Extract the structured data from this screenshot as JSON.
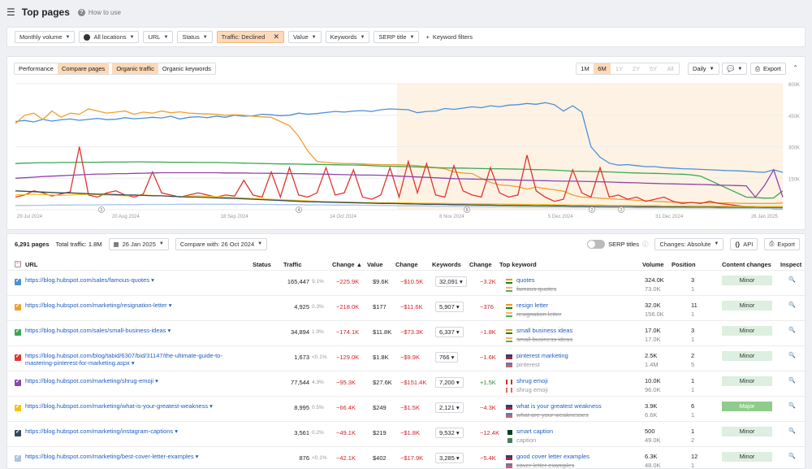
{
  "header": {
    "title": "Top pages",
    "howto": "How to use"
  },
  "filters": [
    {
      "label": "Monthly volume",
      "icon": "none"
    },
    {
      "label": "All locations",
      "icon": "globe"
    },
    {
      "label": "URL"
    },
    {
      "label": "Status"
    },
    {
      "label": "Traffic: Declined",
      "active": true
    },
    {
      "label": "Value"
    },
    {
      "label": "Keywords"
    },
    {
      "label": "SERP title"
    },
    {
      "label": "Keyword filters",
      "plus": true
    }
  ],
  "chart_tabs": [
    "Performance",
    "Compare pages",
    "Organic traffic",
    "Organic keywords"
  ],
  "ranges": [
    "1M",
    "6M",
    "1Y",
    "2Y",
    "5Y",
    "All"
  ],
  "controls": {
    "interval": "Daily",
    "export": "Export"
  },
  "chart_data": {
    "type": "line",
    "x_labels": [
      "29 Jul 2024",
      "20 Aug 2024",
      "18 Sep 2024",
      "14 Oct 2024",
      "8 Nov 2024",
      "5 Dec 2024",
      "31 Dec 2024",
      "26 Jan 2025"
    ],
    "y_ticks": [
      "600K",
      "450K",
      "300K",
      "150K",
      "0"
    ],
    "ylim": [
      0,
      600000
    ],
    "highlight_range": [
      "26 Oct 2024",
      "26 Jan 2025"
    ],
    "annotations": [
      "2",
      "4",
      "8",
      "2",
      "2"
    ],
    "series": [
      {
        "name": "famous-quotes",
        "color": "#4a90d9",
        "values": [
          420,
          425,
          418,
          430,
          422,
          428,
          432,
          426,
          430,
          435,
          429,
          431,
          438,
          433,
          436,
          440,
          437,
          445,
          432,
          440,
          443,
          438,
          446,
          440,
          450,
          445,
          447,
          455,
          452,
          448,
          450,
          460,
          455,
          458,
          463,
          468,
          465,
          470,
          472,
          468,
          476,
          480,
          478,
          476,
          462,
          468,
          470,
          482,
          478,
          484,
          490,
          486,
          495,
          490,
          498,
          500,
          506,
          502,
          510,
          500,
          470,
          495,
          465,
          300,
          250,
          222,
          212,
          215,
          210,
          205,
          205,
          200,
          198,
          195,
          194,
          192,
          190,
          188,
          186,
          185,
          183,
          180,
          178,
          190,
          178
        ]
      },
      {
        "name": "resignation-letter",
        "color": "#f0a030",
        "values": [
          410,
          450,
          460,
          430,
          470,
          440,
          460,
          455,
          480,
          470,
          460,
          465,
          470,
          455,
          465,
          460,
          470,
          462,
          466,
          460,
          458,
          456,
          455,
          450,
          452,
          450,
          445,
          442,
          440,
          420,
          400,
          350,
          280,
          230,
          225,
          222,
          220,
          220,
          218,
          216,
          215,
          214,
          214,
          212,
          210,
          205,
          200,
          195,
          180,
          175,
          172,
          150,
          130,
          118,
          115,
          110,
          98,
          108,
          100,
          95,
          88,
          70,
          60,
          58,
          55,
          52,
          50,
          48,
          45,
          43,
          40,
          38,
          36,
          35,
          34,
          33,
          33,
          32,
          32,
          31,
          30,
          30,
          30,
          30,
          32
        ]
      },
      {
        "name": "small-business-ideas",
        "color": "#3aa655",
        "values": [
          220,
          222,
          223,
          224,
          224,
          225,
          225,
          226,
          226,
          226,
          227,
          227,
          227,
          228,
          228,
          227,
          227,
          226,
          226,
          226,
          225,
          225,
          225,
          224,
          223,
          222,
          221,
          220,
          219,
          218,
          218,
          217,
          216,
          216,
          215,
          214,
          213,
          213,
          212,
          210,
          208,
          207,
          206,
          205,
          204,
          202,
          200,
          199,
          198,
          198,
          197,
          196,
          195,
          195,
          194,
          193,
          192,
          191,
          190,
          188,
          186,
          184,
          183,
          182,
          181,
          180,
          178,
          176,
          175,
          174,
          173,
          172,
          170,
          169,
          166,
          160,
          140,
          120,
          100,
          80,
          60,
          58,
          55,
          56,
          90
        ]
      },
      {
        "name": "pinterest-marketing",
        "color": "#e0342f",
        "values": [
          60,
          70,
          90,
          80,
          65,
          75,
          85,
          300,
          70,
          60,
          80,
          90,
          70,
          60,
          75,
          180,
          80,
          70,
          60,
          70,
          80,
          70,
          60,
          70,
          65,
          140,
          70,
          60,
          180,
          60,
          200,
          70,
          60,
          80,
          200,
          70,
          80,
          190,
          60,
          50,
          70,
          200,
          60,
          230,
          80,
          220,
          70,
          60,
          210,
          90,
          70,
          60,
          200,
          80,
          60,
          70,
          260,
          90,
          60,
          40,
          50,
          190,
          80,
          60,
          200,
          60,
          70,
          50,
          60,
          40,
          50,
          60,
          40,
          30,
          35,
          30,
          40,
          30,
          25,
          20,
          15,
          10,
          8,
          5,
          5
        ]
      },
      {
        "name": "shrug-emoji",
        "color": "#8e44ad",
        "values": [
          150,
          152,
          155,
          158,
          160,
          162,
          164,
          166,
          168,
          170,
          170,
          172,
          172,
          173,
          174,
          175,
          176,
          176,
          176,
          176,
          176,
          176,
          176,
          175,
          175,
          175,
          174,
          174,
          173,
          173,
          172,
          172,
          171,
          170,
          169,
          168,
          167,
          166,
          165,
          165,
          164,
          162,
          160,
          158,
          156,
          154,
          152,
          150,
          148,
          147,
          146,
          145,
          144,
          143,
          142,
          141,
          140,
          139,
          138,
          137,
          136,
          136,
          135,
          134,
          133,
          132,
          130,
          129,
          128,
          126,
          125,
          124,
          123,
          122,
          121,
          120,
          119,
          117,
          116,
          115,
          114,
          60,
          115,
          190,
          60
        ]
      },
      {
        "name": "what-is-your-greatest-weakness",
        "color": "#f1c40f",
        "values": [
          70,
          72,
          74,
          72,
          70,
          68,
          70,
          72,
          74,
          72,
          70,
          68,
          66,
          68,
          70,
          68,
          66,
          64,
          62,
          64,
          66,
          64,
          62,
          60,
          58,
          56,
          54,
          52,
          50,
          48,
          46,
          44,
          42,
          40,
          38,
          38,
          36,
          36,
          34,
          34,
          33,
          33,
          32,
          32,
          31,
          31,
          30,
          30,
          29,
          29,
          28,
          28,
          27,
          27,
          26,
          26,
          25,
          25,
          24,
          24,
          23,
          23,
          22,
          22,
          22,
          21,
          21,
          21,
          20,
          20,
          20,
          19,
          19,
          19,
          18,
          18,
          18,
          17,
          17,
          17,
          16,
          16,
          16,
          16,
          16
        ]
      },
      {
        "name": "instagram-captions",
        "color": "#34495e",
        "values": [
          90,
          88,
          86,
          84,
          82,
          80,
          80,
          78,
          76,
          74,
          74,
          72,
          70,
          70,
          68,
          66,
          66,
          64,
          62,
          60,
          60,
          58,
          56,
          55,
          54,
          52,
          50,
          48,
          46,
          44,
          42,
          40,
          38,
          37,
          36,
          35,
          34,
          33,
          32,
          31,
          30,
          30,
          29,
          28,
          27,
          26,
          26,
          25,
          24,
          24,
          23,
          22,
          22,
          21,
          21,
          20,
          20,
          19,
          19,
          18,
          18,
          17,
          17,
          16,
          16,
          15,
          15,
          15,
          14,
          14,
          14,
          13,
          13,
          13,
          12,
          12,
          12,
          12,
          11,
          11,
          11,
          10,
          10,
          10,
          10
        ]
      },
      {
        "name": "best-cover-letter-examples",
        "color": "#a9c4e8",
        "values": [
          20,
          20,
          21,
          21,
          22,
          22,
          22,
          23,
          23,
          23,
          24,
          24,
          24,
          24,
          25,
          25,
          25,
          25,
          26,
          26,
          26,
          26,
          26,
          26,
          26,
          26,
          25,
          25,
          25,
          24,
          24,
          24,
          23,
          23,
          23,
          22,
          22,
          22,
          21,
          21,
          20,
          20,
          19,
          19,
          18,
          18,
          17,
          17,
          16,
          16,
          15,
          15,
          14,
          14,
          14,
          13,
          13,
          13,
          12,
          12,
          12,
          11,
          11,
          11,
          10,
          10,
          10,
          10,
          9,
          9,
          9,
          9,
          8,
          8,
          8,
          8,
          8,
          7,
          7,
          7,
          7,
          7,
          6,
          6,
          6
        ]
      }
    ]
  },
  "table_bar": {
    "pages": "6,291 pages",
    "total_traffic": "Total traffic: 1.8M",
    "date": "26 Jan 2025",
    "compare": "Compare with: 26 Oct 2024",
    "serp_titles": "SERP titles",
    "changes": "Changes: Absolute",
    "api": "API",
    "export": "Export"
  },
  "columns": [
    "URL",
    "Status",
    "Traffic",
    "Change",
    "Value",
    "Change",
    "Keywords",
    "Change",
    "Top keyword",
    "Volume",
    "Position",
    "Content changes",
    "Inspect"
  ],
  "rows": [
    {
      "color": "#4a90d9",
      "url": "https://blog.hubspot.com/sales/famous-quotes ▾",
      "traffic": "165,447",
      "pct": "9.1%",
      "tchange": "−225.9K",
      "value": "$9.6K",
      "vchange": "−$10.5K",
      "keywords": "32,091",
      "kchange": "−3.2K",
      "kcls": "red",
      "kw1": "quotes",
      "kw2": "famous quotes",
      "flag": "in",
      "strike": true,
      "vol1": "324.0K",
      "vol2": "73.0K",
      "pos1": "3",
      "pos2": "1",
      "content": "Minor"
    },
    {
      "color": "#f0a030",
      "url": "https://blog.hubspot.com/marketing/resignation-letter ▾",
      "traffic": "4,925",
      "pct": "0.3%",
      "tchange": "−218.0K",
      "value": "$177",
      "vchange": "−$11.6K",
      "keywords": "5,907",
      "kchange": "−376",
      "kcls": "red",
      "kw1": "resign letter",
      "kw2": "resignation letter",
      "flag": "in",
      "strike": true,
      "vol1": "32.0K",
      "vol2": "156.0K",
      "pos1": "11",
      "pos2": "1",
      "content": "Minor"
    },
    {
      "color": "#3aa655",
      "url": "https://blog.hubspot.com/sales/small-business-ideas ▾",
      "traffic": "34,894",
      "pct": "1.9%",
      "tchange": "−174.1K",
      "value": "$11.8K",
      "vchange": "−$73.3K",
      "keywords": "6,337",
      "kchange": "−1.8K",
      "kcls": "red",
      "kw1": "small business ideas",
      "kw2": "small business ideas",
      "flag": "in",
      "strike": true,
      "vol1": "17.0K",
      "vol2": "17.0K",
      "pos1": "3",
      "pos2": "1",
      "content": "Minor"
    },
    {
      "color": "#e0342f",
      "url": "https://blog.hubspot.com/blog/tabid/6307/bid/31147/the-ultimate-guide-to-mastering-pinterest-for-marketing.aspx ▾",
      "traffic": "1,673",
      "pct": "<0.1%",
      "tchange": "−129.0K",
      "value": "$1.8K",
      "vchange": "−$9.9K",
      "keywords": "766",
      "kchange": "−1.6K",
      "kcls": "red",
      "kw1": "pinterest marketing",
      "kw2": "pinterest",
      "flag": "us",
      "strike": false,
      "vol1": "2.5K",
      "vol2": "1.4M",
      "pos1": "2",
      "pos2": "5",
      "content": "Minor"
    },
    {
      "color": "#8e44ad",
      "url": "https://blog.hubspot.com/marketing/shrug-emoji ▾",
      "traffic": "77,544",
      "pct": "4.3%",
      "tchange": "−95.3K",
      "value": "$27.6K",
      "vchange": "−$151.4K",
      "keywords": "7,200",
      "kchange": "+1.5K",
      "kcls": "grn",
      "kw1": "shrug emoji",
      "kw2": "shrug emoji",
      "flag": "ca",
      "strike": false,
      "vol1": "10.0K",
      "vol2": "96.0K",
      "pos1": "1",
      "pos2": "1",
      "content": "Minor"
    },
    {
      "color": "#f1c40f",
      "url": "https://blog.hubspot.com/marketing/what-is-your-greatest-weakness ▾",
      "traffic": "8,995",
      "pct": "0.5%",
      "tchange": "−66.4K",
      "value": "$249",
      "vchange": "−$1.5K",
      "keywords": "2,121",
      "kchange": "−4.3K",
      "kcls": "red",
      "kw1": "what is your greatest weakness",
      "kw2": "what are your weaknesses",
      "flag": "us",
      "strike": true,
      "vol1": "3.9K",
      "vol2": "6.6K",
      "pos1": "6",
      "pos2": "1",
      "content": "Major"
    },
    {
      "color": "#34495e",
      "url": "https://blog.hubspot.com/marketing/instagram-captions ▾",
      "traffic": "3,561",
      "pct": "0.2%",
      "tchange": "−49.1K",
      "value": "$219",
      "vchange": "−$1.8K",
      "keywords": "9,532",
      "kchange": "−12.4K",
      "kcls": "red",
      "kw1": "smart caption",
      "kw2": "caption",
      "flag": "pk",
      "strike": false,
      "vol1": "500",
      "vol2": "49.0K",
      "pos1": "1",
      "pos2": "2",
      "content": "Minor"
    },
    {
      "color": "#a9c4e8",
      "url": "https://blog.hubspot.com/marketing/best-cover-letter-examples ▾",
      "traffic": "876",
      "pct": "<0.1%",
      "tchange": "−42.1K",
      "value": "$402",
      "vchange": "−$17.9K",
      "keywords": "3,285",
      "kchange": "−5.4K",
      "kcls": "red",
      "kw1": "good cover letter examples",
      "kw2": "cover letter examples",
      "flag": "us",
      "strike": true,
      "vol1": "6.3K",
      "vol2": "48.0K",
      "pos1": "12",
      "pos2": "1",
      "content": "Minor"
    }
  ]
}
